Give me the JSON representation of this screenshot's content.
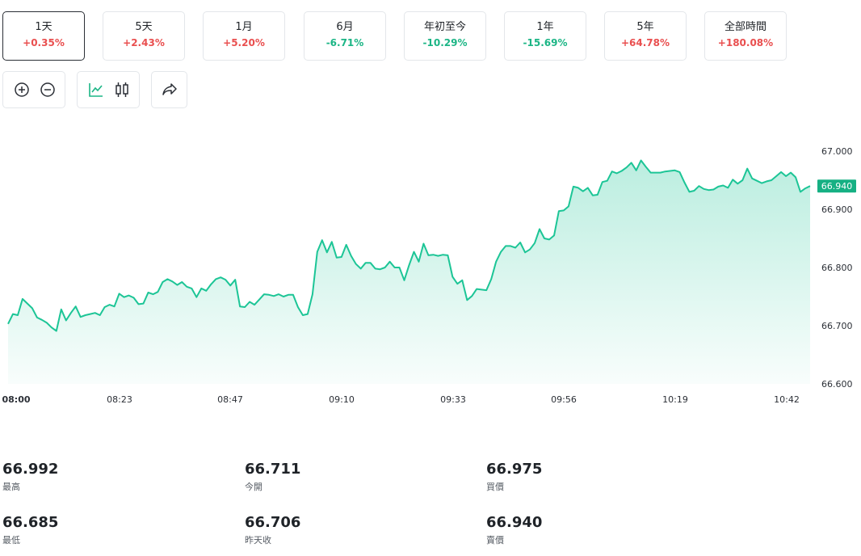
{
  "ranges": [
    {
      "label": "1天",
      "change": "+0.35%",
      "dir": "pos",
      "active": true
    },
    {
      "label": "5天",
      "change": "+2.43%",
      "dir": "pos",
      "active": false
    },
    {
      "label": "1月",
      "change": "+5.20%",
      "dir": "pos",
      "active": false
    },
    {
      "label": "6月",
      "change": "-6.71%",
      "dir": "neg",
      "active": false
    },
    {
      "label": "年初至今",
      "change": "-10.29%",
      "dir": "neg",
      "active": false
    },
    {
      "label": "1年",
      "change": "-15.69%",
      "dir": "neg",
      "active": false
    },
    {
      "label": "5年",
      "change": "+64.78%",
      "dir": "pos",
      "active": false
    },
    {
      "label": "全部時間",
      "change": "+180.08%",
      "dir": "pos",
      "active": false
    }
  ],
  "toolbar": {
    "icons": [
      "zoom-in-icon",
      "zoom-out-icon",
      "line-chart-icon",
      "candlestick-icon",
      "share-icon"
    ],
    "accent": "#1bb585"
  },
  "colors": {
    "up": "#e94f4f",
    "down": "#1bb585",
    "line": "#1cc596",
    "price_tag": "#16b083"
  },
  "chart_data": {
    "type": "area",
    "x_ticks": [
      "08:00",
      "08:23",
      "08:47",
      "09:10",
      "09:33",
      "09:56",
      "10:19",
      "10:42"
    ],
    "y_ticks": [
      "67.000",
      "66.900",
      "66.800",
      "66.700",
      "66.600"
    ],
    "ylim": [
      66.6,
      67.0
    ],
    "last_price_label": "66.940",
    "grid": false,
    "series": [
      {
        "values": [
          66.703,
          66.72,
          66.718,
          66.746,
          66.738,
          66.73,
          66.714,
          66.71,
          66.705,
          66.697,
          66.691,
          66.728,
          66.709,
          66.722,
          66.733,
          66.715,
          66.718,
          66.72,
          66.722,
          66.718,
          66.732,
          66.736,
          66.733,
          66.755,
          66.749,
          66.752,
          66.748,
          66.737,
          66.738,
          66.757,
          66.754,
          66.758,
          66.775,
          66.78,
          66.776,
          66.77,
          66.775,
          66.767,
          66.764,
          66.749,
          66.764,
          66.76,
          66.771,
          66.78,
          66.783,
          66.779,
          66.769,
          66.779,
          66.733,
          66.732,
          66.741,
          66.736,
          66.745,
          66.754,
          66.753,
          66.751,
          66.754,
          66.75,
          66.753,
          66.753,
          66.732,
          66.718,
          66.72,
          66.754,
          66.827,
          66.847,
          66.826,
          66.844,
          66.817,
          66.818,
          66.839,
          66.82,
          66.806,
          66.798,
          66.808,
          66.808,
          66.798,
          66.797,
          66.8,
          66.81,
          66.8,
          66.8,
          66.778,
          66.804,
          66.827,
          66.81,
          66.841,
          66.821,
          66.822,
          66.82,
          66.822,
          66.821,
          66.784,
          66.772,
          66.778,
          66.744,
          66.751,
          66.763,
          66.762,
          66.761,
          66.78,
          66.81,
          66.827,
          66.837,
          66.837,
          66.834,
          66.843,
          66.826,
          66.831,
          66.842,
          66.866,
          66.85,
          66.848,
          66.855,
          66.897,
          66.898,
          66.905,
          66.939,
          66.937,
          66.931,
          66.937,
          66.924,
          66.925,
          66.947,
          66.949,
          66.965,
          66.962,
          66.966,
          66.972,
          66.98,
          66.967,
          66.984,
          66.973,
          66.963,
          66.963,
          66.963,
          66.965,
          66.966,
          66.967,
          66.964,
          66.946,
          66.93,
          66.932,
          66.94,
          66.935,
          66.933,
          66.934,
          66.939,
          66.941,
          66.937,
          66.951,
          66.944,
          66.95,
          66.97,
          66.953,
          66.949,
          66.945,
          66.948,
          66.95,
          66.957,
          66.964,
          66.957,
          66.963,
          66.955,
          66.93,
          66.936,
          66.94
        ]
      }
    ]
  },
  "stats": [
    {
      "value": "66.992",
      "label": "最高"
    },
    {
      "value": "66.711",
      "label": "今開"
    },
    {
      "value": "66.975",
      "label": "買價"
    },
    {
      "value": "66.685",
      "label": "最低"
    },
    {
      "value": "66.706",
      "label": "昨天收"
    },
    {
      "value": "66.940",
      "label": "賣價"
    }
  ]
}
